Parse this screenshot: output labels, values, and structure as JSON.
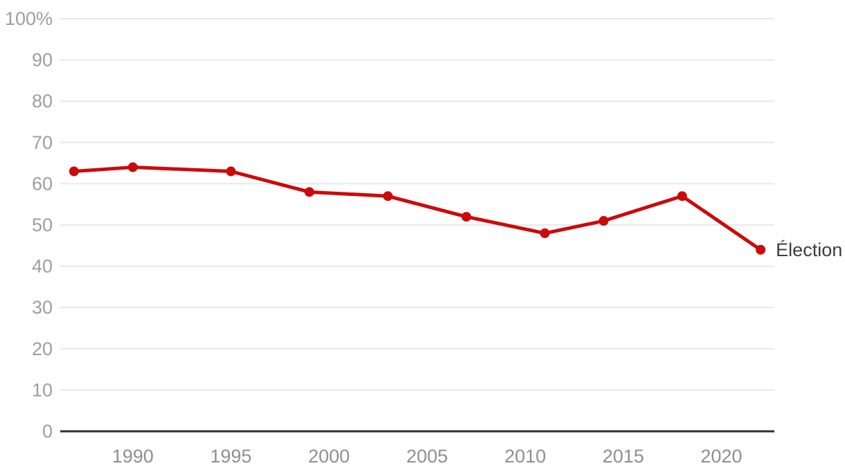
{
  "chart_data": {
    "type": "line",
    "title": "",
    "series_label": "Élection",
    "unit": "%",
    "x": [
      1987,
      1990,
      1995,
      1999,
      2003,
      2007,
      2011,
      2014,
      2018,
      2022
    ],
    "values": [
      63,
      64,
      63,
      58,
      57,
      52,
      48,
      51,
      57,
      44
    ],
    "xlim": [
      1986.3,
      2022.7
    ],
    "ylim": [
      0,
      100
    ],
    "y_ticks": [
      {
        "value": 0,
        "label": "0"
      },
      {
        "value": 10,
        "label": "10"
      },
      {
        "value": 20,
        "label": "20"
      },
      {
        "value": 30,
        "label": "30"
      },
      {
        "value": 40,
        "label": "40"
      },
      {
        "value": 50,
        "label": "50"
      },
      {
        "value": 60,
        "label": "60"
      },
      {
        "value": 70,
        "label": "70"
      },
      {
        "value": 80,
        "label": "80"
      },
      {
        "value": 90,
        "label": "90"
      },
      {
        "value": 100,
        "label": "100%"
      }
    ],
    "x_ticks": [
      {
        "value": 1990,
        "label": "1990"
      },
      {
        "value": 1995,
        "label": "1995"
      },
      {
        "value": 2000,
        "label": "2000"
      },
      {
        "value": 2005,
        "label": "2005"
      },
      {
        "value": 2010,
        "label": "2010"
      },
      {
        "value": 2015,
        "label": "2015"
      },
      {
        "value": 2020,
        "label": "2020"
      }
    ],
    "grid": "horizontal-only",
    "legend_position": "end-of-line",
    "colors": {
      "line": "#cc0a0a",
      "point": "#cc0a0a",
      "grid": "#e8e8e8",
      "axis": "#2e2e2e",
      "y_tick_label": "#9e9e9e",
      "x_tick_label": "#8f8f8f",
      "series_label": "#3d3d3d",
      "background": "#ffffff"
    }
  }
}
